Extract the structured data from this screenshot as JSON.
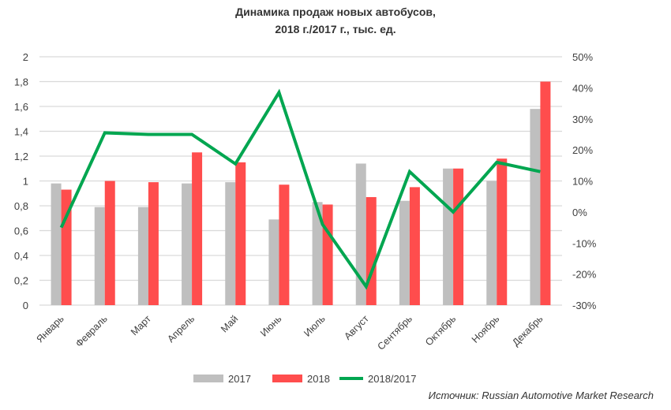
{
  "chart_data": {
    "type": "bar",
    "title": "Динамика продаж новых автобусов,",
    "subtitle": "2018 г./2017 г., тыс. ед.",
    "categories": [
      "Январь",
      "Февраль",
      "Март",
      "Апрель",
      "Май",
      "Июнь",
      "Июль",
      "Август",
      "Сентябрь",
      "Октябрь",
      "Ноябрь",
      "Декабрь"
    ],
    "series": [
      {
        "name": "2017",
        "type": "bar",
        "axis": "left",
        "color": "#bfbfbf",
        "values": [
          0.98,
          0.79,
          0.79,
          0.98,
          0.99,
          0.69,
          0.83,
          1.14,
          0.84,
          1.1,
          1.0,
          1.58
        ]
      },
      {
        "name": "2018",
        "type": "bar",
        "axis": "left",
        "color": "#ff4d4d",
        "values": [
          0.93,
          1.0,
          0.99,
          1.23,
          1.15,
          0.97,
          0.81,
          0.87,
          0.95,
          1.1,
          1.18,
          1.8
        ]
      },
      {
        "name": "2018/2017",
        "type": "line",
        "axis": "right",
        "color": "#00a650",
        "values": [
          -5,
          25.5,
          25,
          25,
          15.5,
          38.5,
          -4,
          -24,
          13,
          0,
          16,
          13
        ]
      }
    ],
    "left_axis": {
      "ylim": [
        0,
        2
      ],
      "ticks": [
        "0",
        "0,2",
        "0,4",
        "0,6",
        "0,8",
        "1",
        "1,2",
        "1,4",
        "1,6",
        "1,8",
        "2"
      ]
    },
    "right_axis": {
      "ylim": [
        -30,
        50
      ],
      "ticks": [
        "-30%",
        "-20%",
        "-10%",
        "0%",
        "10%",
        "20%",
        "30%",
        "40%",
        "50%"
      ]
    },
    "grid": true,
    "legend_position": "bottom",
    "source": "Источник: Russian Automotive Market Research"
  }
}
